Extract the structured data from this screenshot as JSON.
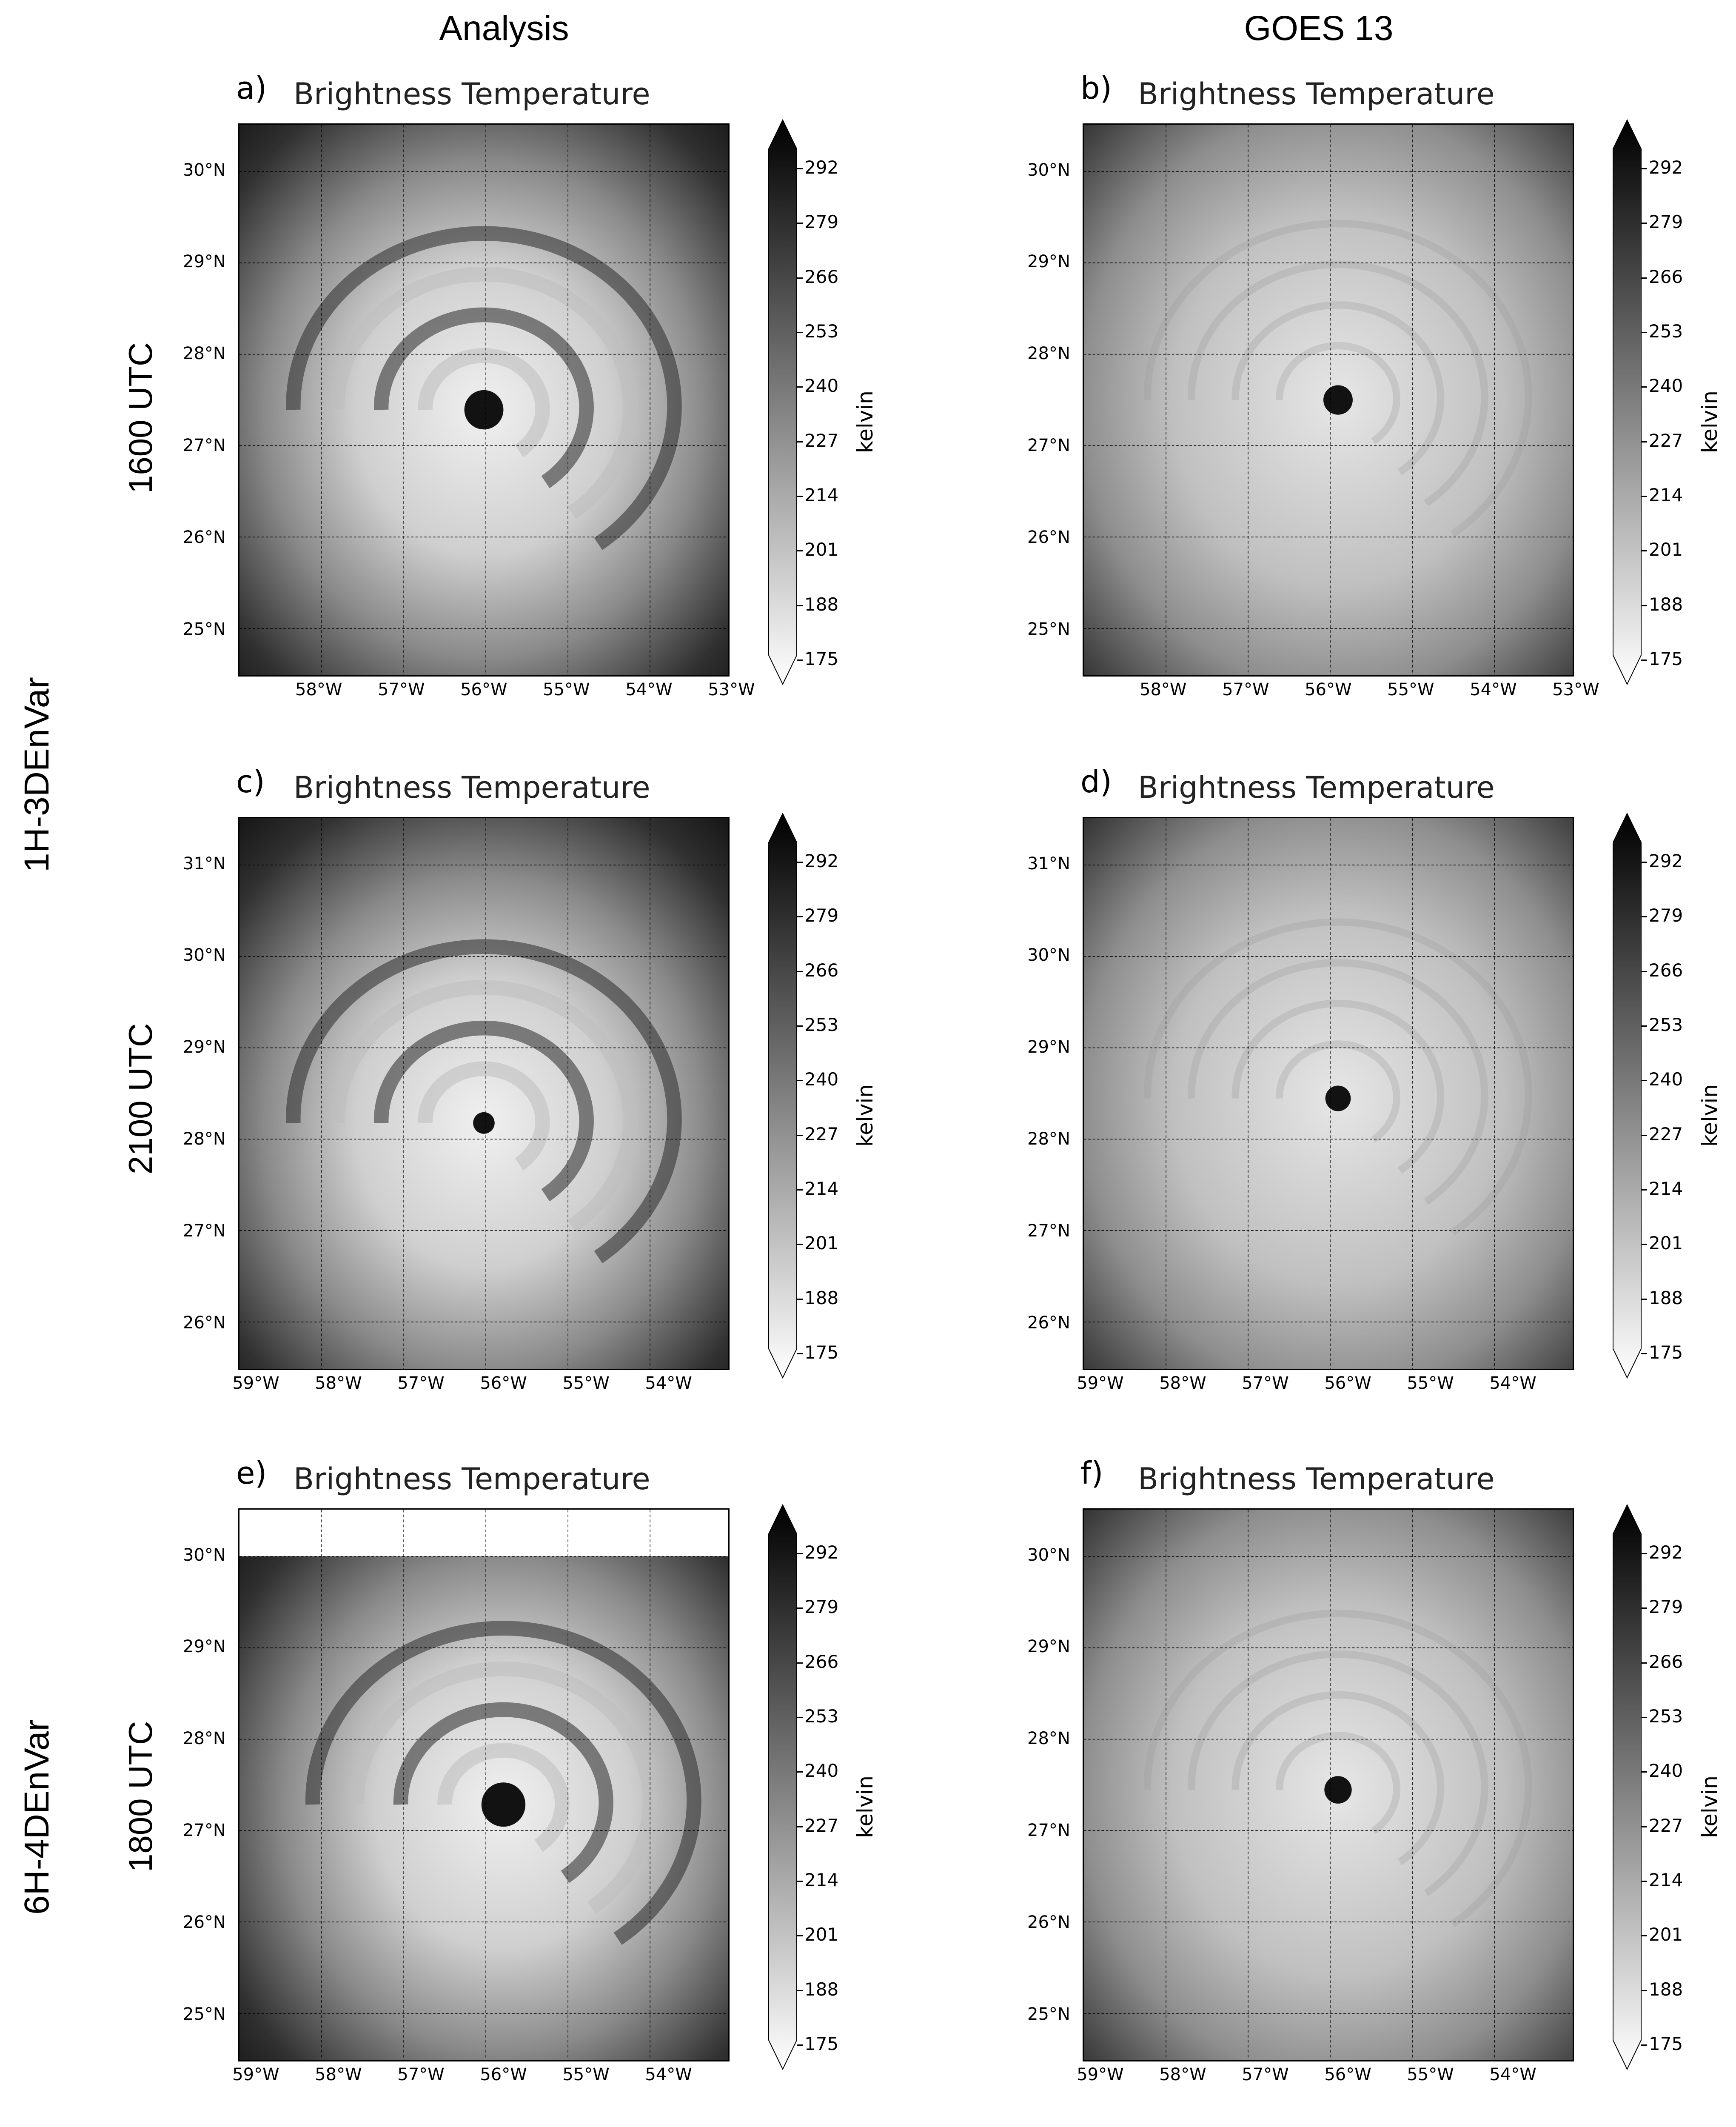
{
  "column_titles": [
    "Analysis",
    "GOES 13"
  ],
  "group_labels": [
    "1H-3DEnVar",
    "6H-4DEnVar"
  ],
  "row_times": [
    "1600 UTC",
    "2100 UTC",
    "1800 UTC"
  ],
  "panel_title": "Brightness Temperature",
  "colorbar": {
    "unit": "kelvin",
    "ticks": [
      "292",
      "279",
      "266",
      "253",
      "240",
      "227",
      "214",
      "201",
      "188",
      "175"
    ],
    "min": 175,
    "max": 292,
    "colormap": "gray_r"
  },
  "panels": [
    {
      "label": "a)",
      "row": 0,
      "col": 0,
      "source": "Analysis",
      "lat_ticks": [
        "30°N",
        "29°N",
        "28°N",
        "27°N",
        "26°N",
        "25°N"
      ],
      "lon_ticks": [
        "58°W",
        "57°W",
        "56°W",
        "55°W",
        "54°W",
        "53°W"
      ],
      "eye": "structured spiral, cold cloud"
    },
    {
      "label": "b)",
      "row": 0,
      "col": 1,
      "source": "GOES 13",
      "lat_ticks": [
        "30°N",
        "29°N",
        "28°N",
        "27°N",
        "26°N",
        "25°N"
      ],
      "lon_ticks": [
        "58°W",
        "57°W",
        "56°W",
        "55°W",
        "54°W",
        "53°W"
      ],
      "eye": "dark eye"
    },
    {
      "label": "c)",
      "row": 1,
      "col": 0,
      "source": "Analysis",
      "lat_ticks": [
        "31°N",
        "30°N",
        "29°N",
        "28°N",
        "27°N",
        "26°N"
      ],
      "lon_ticks": [
        "59°W",
        "58°W",
        "57°W",
        "56°W",
        "55°W",
        "54°W"
      ],
      "eye": "small eye"
    },
    {
      "label": "d)",
      "row": 1,
      "col": 1,
      "source": "GOES 13",
      "lat_ticks": [
        "31°N",
        "30°N",
        "29°N",
        "28°N",
        "27°N",
        "26°N"
      ],
      "lon_ticks": [
        "59°W",
        "58°W",
        "57°W",
        "56°W",
        "55°W",
        "54°W"
      ],
      "eye": "dark eye"
    },
    {
      "label": "e)",
      "row": 2,
      "col": 0,
      "source": "Analysis",
      "lat_ticks": [
        "30°N",
        "29°N",
        "28°N",
        "27°N",
        "26°N",
        "25°N"
      ],
      "lon_ticks": [
        "59°W",
        "58°W",
        "57°W",
        "56°W",
        "55°W",
        "54°W"
      ],
      "eye": "large dark eye"
    },
    {
      "label": "f)",
      "row": 2,
      "col": 1,
      "source": "GOES 13",
      "lat_ticks": [
        "30°N",
        "29°N",
        "28°N",
        "27°N",
        "26°N",
        "25°N"
      ],
      "lon_ticks": [
        "59°W",
        "58°W",
        "57°W",
        "56°W",
        "55°W",
        "54°W"
      ],
      "eye": "dark eye"
    }
  ]
}
